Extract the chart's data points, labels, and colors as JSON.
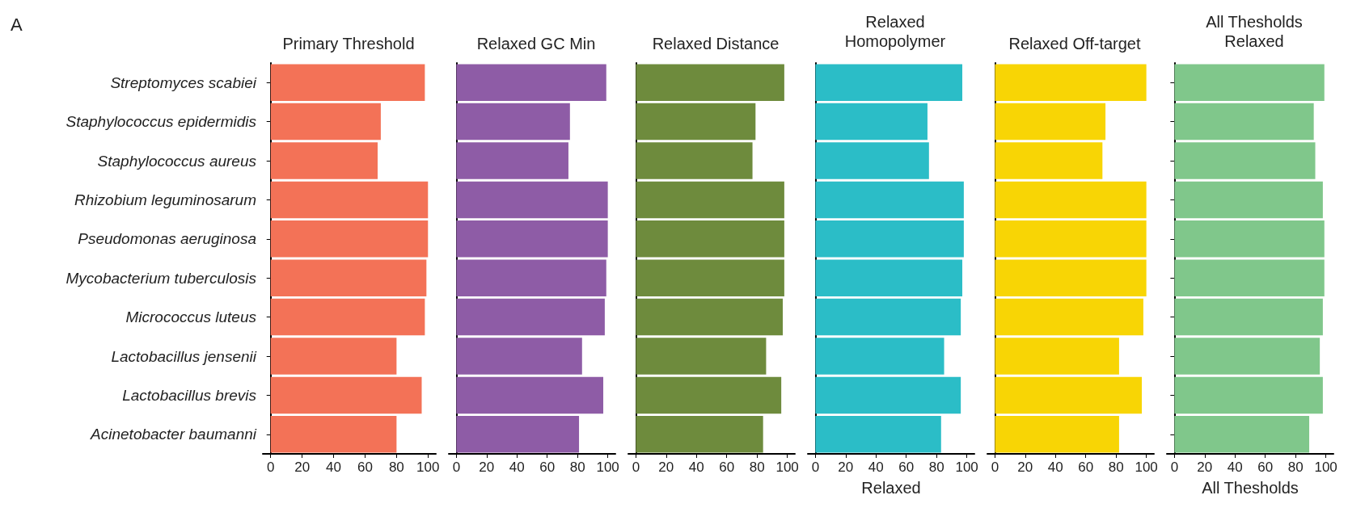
{
  "chart_data": [
    {
      "type": "bar",
      "orientation": "horizontal",
      "title": "Primary Threshold",
      "annotations": [
        "A"
      ],
      "categories": [
        "Streptomyces scabiei",
        "Staphylococcus epidermidis",
        "Staphylococcus aureus",
        "Rhizobium leguminosarum",
        "Pseudomonas aeruginosa",
        "Mycobacterium tuberculosis",
        "Micrococcus luteus",
        "Lactobacillus jensenii",
        "Lactobacillus brevis",
        "Acinetobacter baumanni"
      ],
      "values": [
        98,
        70,
        68,
        100,
        100,
        99,
        98,
        80,
        96,
        80
      ],
      "color": "#f37257",
      "xlim": [
        -5,
        105
      ],
      "xticks": [
        0,
        20,
        40,
        60,
        80,
        100
      ]
    },
    {
      "type": "bar",
      "orientation": "horizontal",
      "title": "Relaxed GC Min",
      "categories": [
        null,
        null,
        null,
        null,
        null,
        null,
        null,
        null,
        null,
        null
      ],
      "values": [
        99,
        75,
        74,
        100,
        100,
        99,
        98,
        83,
        97,
        81
      ],
      "color": "#8e5ca6",
      "xlim": [
        -5,
        105
      ],
      "xticks": [
        0,
        20,
        40,
        60,
        80,
        100
      ],
      "tick_labels": "x"
    },
    {
      "type": "bar",
      "orientation": "horizontal",
      "title": "Relaxed Distance",
      "categories": [
        null,
        null,
        null,
        null,
        null,
        null,
        null,
        null,
        null,
        null
      ],
      "values": [
        98,
        79,
        77,
        98,
        98,
        98,
        97,
        86,
        96,
        84
      ],
      "color": "#6e8b3d",
      "xlim": [
        -5,
        105
      ],
      "xticks": [
        0,
        20,
        40,
        60,
        80,
        100
      ],
      "tick_labels": "x"
    },
    {
      "type": "bar",
      "orientation": "horizontal",
      "title": "Relaxed\nHomopolymer",
      "xlabel": "Relaxed",
      "categories": [
        null,
        null,
        null,
        null,
        null,
        null,
        null,
        null,
        null,
        null
      ],
      "values": [
        97,
        74,
        75,
        98,
        98,
        97,
        96,
        85,
        96,
        83
      ],
      "color": "#2bbdc7",
      "xlim": [
        -5,
        105
      ],
      "xticks": [
        0,
        20,
        40,
        60,
        80,
        100
      ],
      "tick_labels": "x"
    },
    {
      "type": "bar",
      "orientation": "horizontal",
      "title": "Relaxed Off-target",
      "categories": [
        null,
        null,
        null,
        null,
        null,
        null,
        null,
        null,
        null,
        null
      ],
      "values": [
        100,
        73,
        71,
        100,
        100,
        100,
        98,
        82,
        97,
        82
      ],
      "color": "#f8d505",
      "xlim": [
        -5,
        105
      ],
      "xticks": [
        0,
        20,
        40,
        60,
        80,
        100
      ],
      "tick_labels": "x"
    },
    {
      "type": "bar",
      "orientation": "horizontal",
      "title": "All Thesholds\nRelaxed",
      "xlabel": "All Thesholds",
      "categories": [
        null,
        null,
        null,
        null,
        null,
        null,
        null,
        null,
        null,
        null
      ],
      "values": [
        99,
        92,
        93,
        98,
        99,
        99,
        98,
        96,
        98,
        89
      ],
      "color": "#80c78b",
      "xlim": [
        -5,
        105
      ],
      "xticks": [
        0,
        20,
        40,
        60,
        80,
        100
      ],
      "tick_labels": "x"
    }
  ]
}
